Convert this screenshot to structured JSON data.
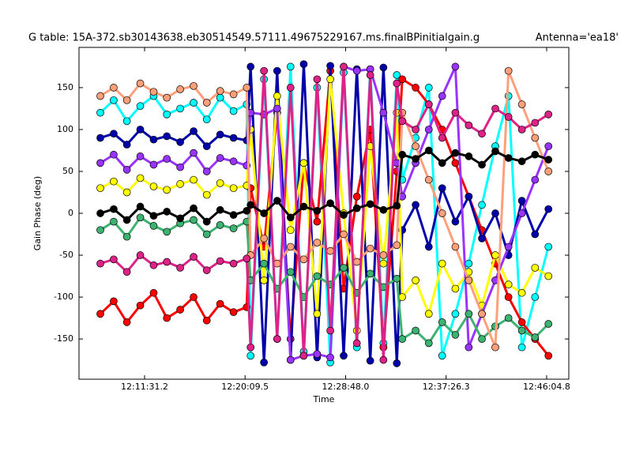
{
  "chart_data": {
    "type": "scatter",
    "title": "G table: 15A-372.sb30143638.eb30514549.57111.49675229167.ms.finalBPinitialgain.g",
    "subtitle": "Antenna='ea18'",
    "x_label": "Time",
    "y_label": "Gain Phase (deg)",
    "xlim": [
      43553,
      46079
    ],
    "ylim": [
      -198,
      198
    ],
    "xticks": [
      {
        "value": 43891.2,
        "label": "12:11:31.2"
      },
      {
        "value": 44409.5,
        "label": "12:20:09.5"
      },
      {
        "value": 44928.0,
        "label": "12:28:48.0"
      },
      {
        "value": 45446.3,
        "label": "12:37:26.3"
      },
      {
        "value": 45964.8,
        "label": "12:46:04.8"
      }
    ],
    "yticks": [
      -150,
      -100,
      -50,
      0,
      50,
      100,
      150
    ],
    "x": [
      43663,
      43732,
      43800,
      43869,
      43938,
      44006,
      44075,
      44144,
      44212,
      44281,
      44350,
      44418,
      44438,
      44507,
      44575,
      44644,
      44712,
      44781,
      44849,
      44918,
      44986,
      45055,
      45123,
      45192,
      45220,
      45289,
      45357,
      45426,
      45494,
      45563,
      45631,
      45700,
      45768,
      45837,
      45905,
      45974
    ],
    "series": [
      {
        "color": "#00ffff",
        "values": [
          120,
          135,
          110,
          128,
          140,
          118,
          125,
          132,
          112,
          138,
          122,
          130,
          -170,
          160,
          -150,
          175,
          -165,
          150,
          -178,
          168,
          -160,
          172,
          -155,
          165,
          40,
          90,
          150,
          -170,
          -120,
          -60,
          10,
          80,
          140,
          -160,
          -100,
          -40
        ]
      },
      {
        "color": "#ff0000",
        "values": [
          -120,
          -105,
          -130,
          -110,
          -95,
          -125,
          -115,
          -100,
          -128,
          -108,
          -118,
          -112,
          30,
          -40,
          120,
          -150,
          60,
          -10,
          170,
          -90,
          20,
          100,
          -160,
          50,
          160,
          150,
          130,
          100,
          60,
          20,
          -20,
          -60,
          -100,
          -130,
          -150,
          -170
        ]
      },
      {
        "color": "#0000aa",
        "values": [
          90,
          95,
          82,
          100,
          88,
          92,
          85,
          98,
          80,
          94,
          90,
          87,
          175,
          -178,
          170,
          -175,
          178,
          -172,
          176,
          -170,
          172,
          -176,
          174,
          -179,
          -20,
          10,
          -40,
          30,
          -10,
          20,
          -30,
          0,
          -50,
          15,
          -25,
          5
        ]
      },
      {
        "color": "#ffff00",
        "values": [
          30,
          38,
          25,
          42,
          32,
          28,
          35,
          40,
          22,
          36,
          30,
          33,
          100,
          -80,
          140,
          -20,
          60,
          -120,
          160,
          0,
          -140,
          80,
          -60,
          120,
          -100,
          -80,
          -120,
          -60,
          -90,
          -70,
          -110,
          -50,
          -85,
          -95,
          -65,
          -75
        ]
      },
      {
        "color": "#9933ff",
        "values": [
          60,
          70,
          52,
          68,
          58,
          65,
          55,
          72,
          50,
          66,
          62,
          57,
          120,
          118,
          125,
          -175,
          -170,
          -168,
          -172,
          175,
          170,
          172,
          120,
          60,
          20,
          60,
          100,
          140,
          175,
          -160,
          -120,
          -80,
          -40,
          0,
          40,
          80
        ]
      },
      {
        "color": "#3cb371",
        "values": [
          -20,
          -10,
          -28,
          -5,
          -15,
          -22,
          -12,
          -8,
          -25,
          -14,
          -18,
          -10,
          -80,
          -60,
          -90,
          -70,
          -100,
          -75,
          -85,
          -65,
          -95,
          -72,
          -88,
          -78,
          -150,
          -140,
          -155,
          -130,
          -145,
          -120,
          -150,
          -135,
          -125,
          -140,
          -148,
          -132
        ]
      },
      {
        "color": "#ffa07a",
        "values": [
          140,
          150,
          135,
          155,
          145,
          138,
          148,
          152,
          132,
          146,
          142,
          150,
          -50,
          -30,
          -60,
          -40,
          -55,
          -35,
          -45,
          -25,
          -58,
          -42,
          -50,
          -38,
          120,
          80,
          40,
          0,
          -40,
          -80,
          -120,
          -160,
          170,
          130,
          90,
          50
        ]
      },
      {
        "color": "#dd2288",
        "values": [
          -60,
          -55,
          -70,
          -50,
          -62,
          -58,
          -65,
          -52,
          -68,
          -57,
          -60,
          -54,
          -160,
          170,
          -150,
          150,
          -170,
          160,
          -140,
          175,
          -155,
          165,
          -175,
          155,
          110,
          100,
          130,
          90,
          120,
          105,
          95,
          125,
          115,
          100,
          108,
          118
        ]
      },
      {
        "color": "#000000",
        "values": [
          0,
          5,
          -8,
          8,
          -3,
          2,
          -6,
          6,
          -10,
          4,
          -2,
          3,
          10,
          0,
          15,
          -5,
          8,
          3,
          12,
          -2,
          6,
          11,
          4,
          9,
          70,
          65,
          75,
          60,
          72,
          68,
          58,
          74,
          66,
          62,
          70,
          64
        ]
      }
    ]
  }
}
